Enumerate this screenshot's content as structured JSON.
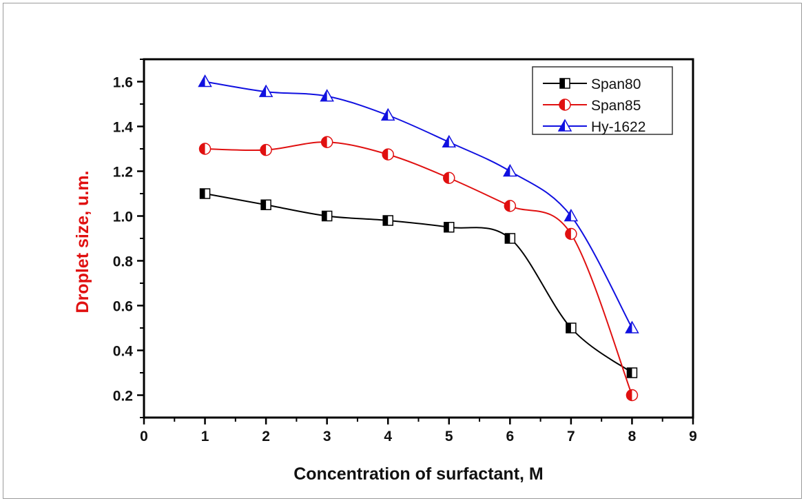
{
  "chart_data": {
    "type": "line",
    "title": "",
    "xlabel": "Concentration of surfactant, M",
    "ylabel": "Droplet size, u.m.",
    "xlim": [
      0,
      9
    ],
    "ylim": [
      0.1,
      1.7
    ],
    "xticks": [
      "0",
      "1",
      "2",
      "3",
      "4",
      "5",
      "6",
      "7",
      "8",
      "9"
    ],
    "yticks": [
      "0.2",
      "0.4",
      "0.6",
      "0.8",
      "1.0",
      "1.2",
      "1.4",
      "1.6"
    ],
    "legend_position": "top-right",
    "x": [
      1,
      2,
      3,
      4,
      5,
      6,
      7,
      8
    ],
    "series": [
      {
        "name": "Span80",
        "color": "#000000",
        "marker": "square-half",
        "values": [
          1.1,
          1.05,
          1.0,
          0.98,
          0.95,
          0.9,
          0.5,
          0.3
        ]
      },
      {
        "name": "Span85",
        "color": "#e01010",
        "marker": "circle-half",
        "values": [
          1.3,
          1.295,
          1.33,
          1.275,
          1.17,
          1.045,
          0.92,
          0.2
        ]
      },
      {
        "name": "Hy-1622",
        "color": "#1010e0",
        "marker": "triangle-half",
        "values": [
          1.6,
          1.555,
          1.535,
          1.45,
          1.33,
          1.2,
          1.0,
          0.5
        ]
      }
    ]
  }
}
